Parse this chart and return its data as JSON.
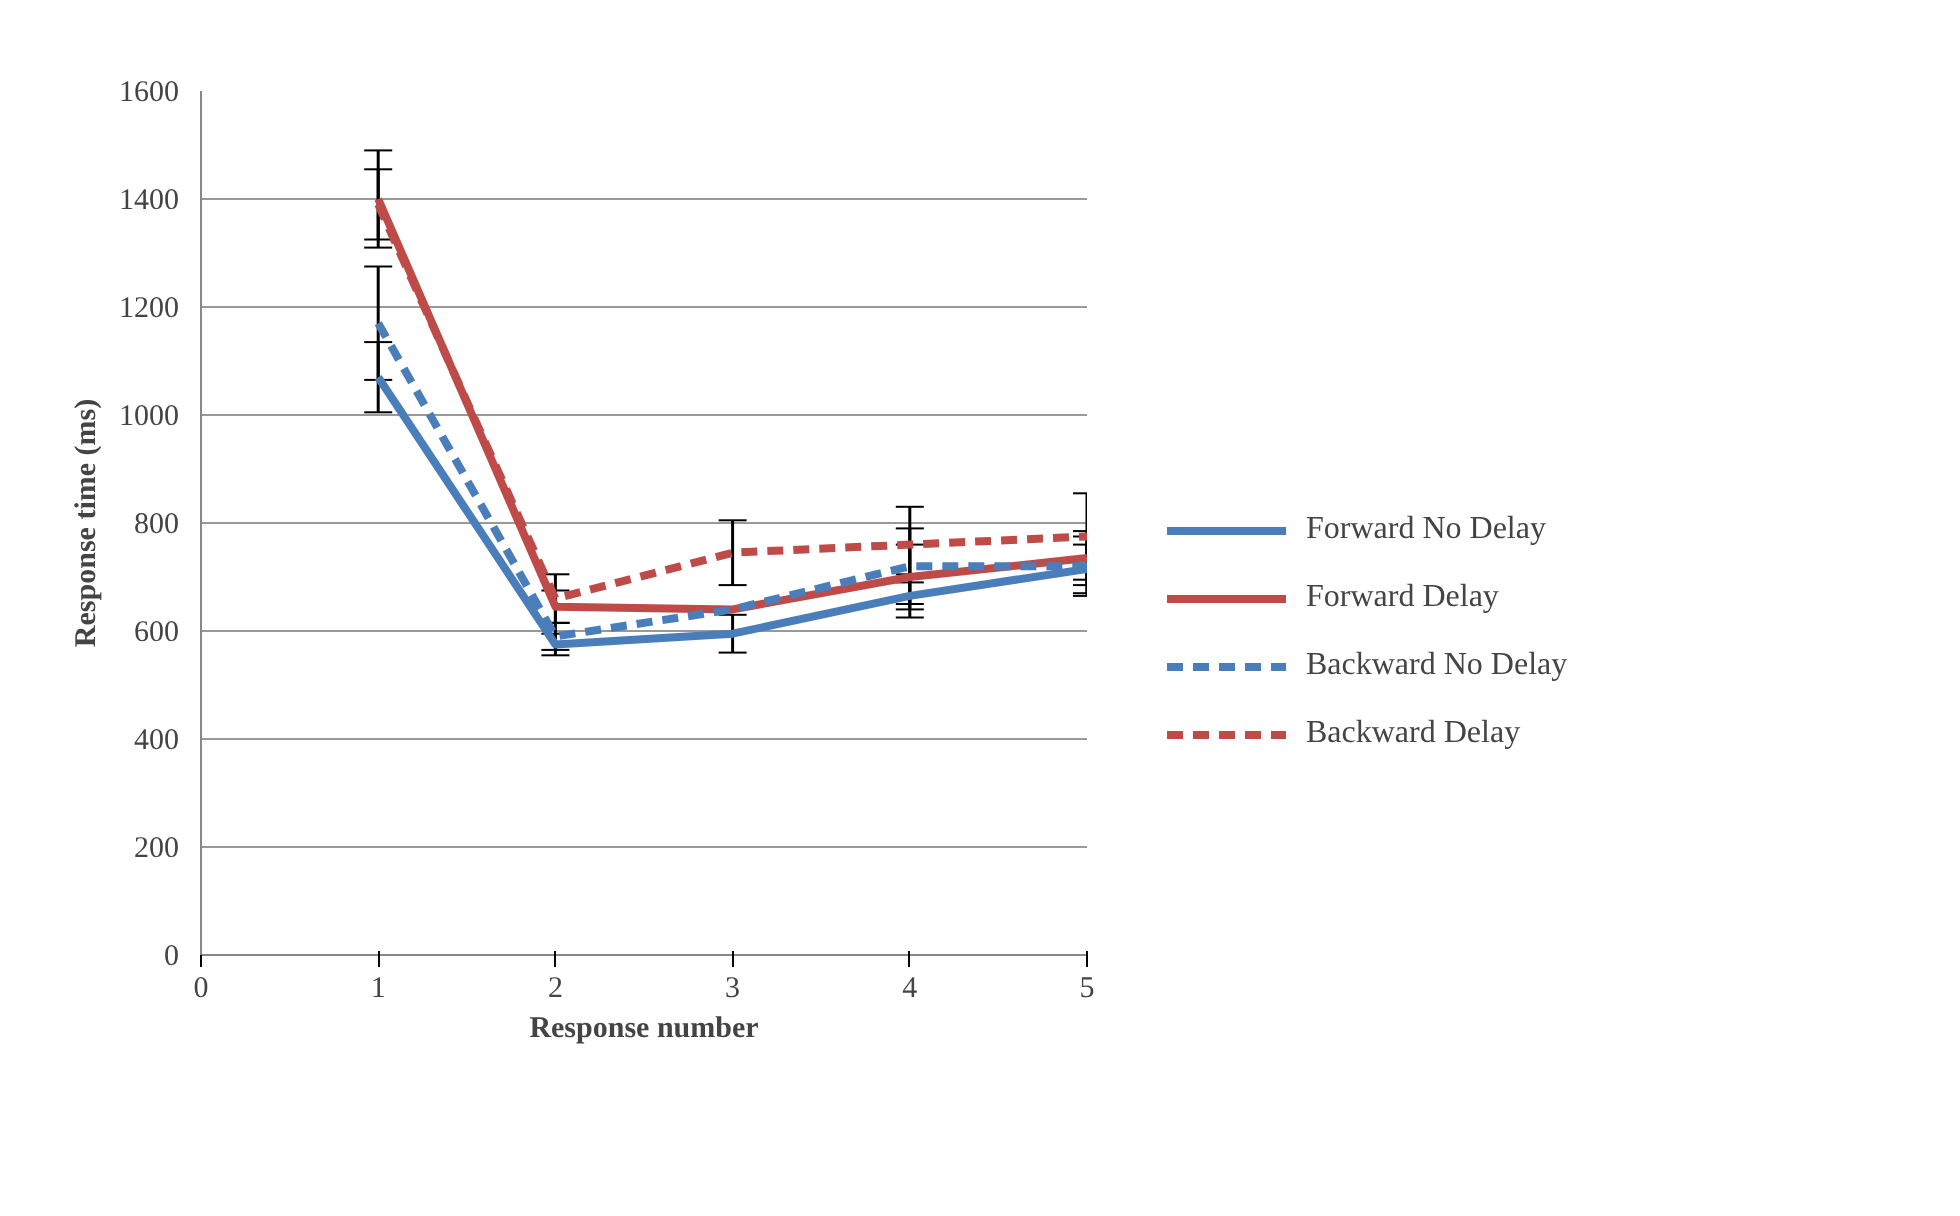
{
  "chart_data": {
    "type": "line",
    "xlabel": "Response number",
    "ylabel": "Response time (ms)",
    "xlim": [
      0,
      5
    ],
    "xticks": [
      0,
      1,
      2,
      3,
      4,
      5
    ],
    "ylim": [
      0,
      1600
    ],
    "yticks": [
      0,
      200,
      400,
      600,
      800,
      1000,
      1200,
      1400,
      1600
    ],
    "grid": "y",
    "legend": "right",
    "marker": "none",
    "x": [
      1,
      2,
      3,
      4,
      5
    ],
    "series": [
      {
        "name": "Forward No Delay",
        "color": "#4a7ebb",
        "line_style": "solid",
        "values": [
          1070,
          575,
          595,
          665,
          715
        ],
        "errors": [
          65,
          20,
          35,
          40,
          45
        ]
      },
      {
        "name": "Forward Delay",
        "color": "#be4b48",
        "line_style": "solid",
        "values": [
          1400,
          645,
          640,
          700,
          735
        ],
        "errors": [
          90,
          30,
          null,
          60,
          50
        ]
      },
      {
        "name": "Backward No Delay",
        "color": "#4a7ebb",
        "line_style": "dashed",
        "values": [
          1170,
          590,
          640,
          720,
          720
        ],
        "errors": [
          105,
          25,
          null,
          70,
          55
        ]
      },
      {
        "name": "Backward Delay",
        "color": "#be4b48",
        "line_style": "dashed",
        "values": [
          1390,
          660,
          745,
          760,
          775
        ],
        "errors": [
          65,
          45,
          60,
          70,
          80
        ]
      }
    ]
  }
}
